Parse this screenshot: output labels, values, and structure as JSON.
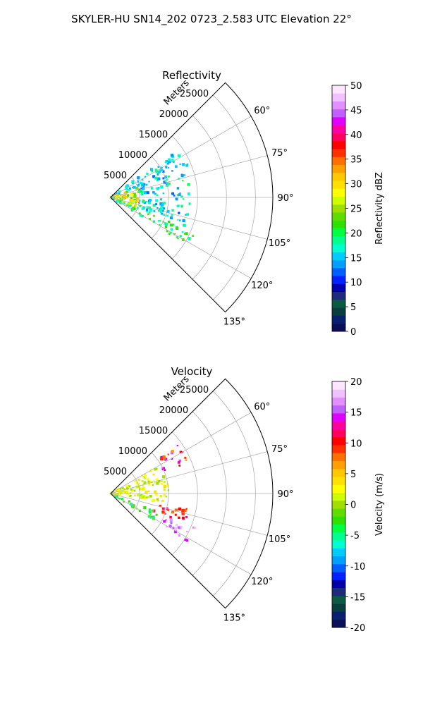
{
  "title": "SKYLER-HU  SN14_202  0723_2.583 UTC Elevation 22°",
  "chart_data": [
    {
      "type": "polar-sector",
      "title": "Reflectivity",
      "r_label": "Meters",
      "r_max": 28000,
      "r_ticks": [
        5000,
        10000,
        15000,
        20000,
        25000
      ],
      "theta_range_deg": [
        45,
        135
      ],
      "theta_ticks": [
        {
          "deg": 60,
          "label": "60°"
        },
        {
          "deg": 75,
          "label": "75°"
        },
        {
          "deg": 90,
          "label": "90°"
        },
        {
          "deg": 105,
          "label": "105°"
        },
        {
          "deg": 120,
          "label": "120°"
        },
        {
          "deg": 135,
          "label": "135°"
        }
      ],
      "grid": true,
      "colorbar": {
        "label": "Reflectivity dBZ",
        "min": 0,
        "max": 50,
        "ticks": [
          0,
          5,
          10,
          15,
          20,
          25,
          30,
          35,
          40,
          45,
          50
        ]
      },
      "data_regions": [
        {
          "theta": [
            54,
            70
          ],
          "r": [
            0,
            14500
          ],
          "value_range": [
            12,
            18
          ]
        },
        {
          "theta": [
            70,
            112
          ],
          "r": [
            0,
            5000
          ],
          "value_range": [
            22,
            32
          ]
        },
        {
          "theta": [
            70,
            112
          ],
          "r": [
            5000,
            14000
          ],
          "value_range": [
            12,
            20
          ]
        },
        {
          "theta": [
            112,
            122
          ],
          "r": [
            0,
            16000
          ],
          "value_range": [
            16,
            24
          ]
        }
      ]
    },
    {
      "type": "polar-sector",
      "title": "Velocity",
      "r_label": "Meters",
      "r_max": 28000,
      "r_ticks": [
        5000,
        10000,
        15000,
        20000,
        25000
      ],
      "theta_range_deg": [
        45,
        135
      ],
      "theta_ticks": [
        {
          "deg": 60,
          "label": "60°"
        },
        {
          "deg": 75,
          "label": "75°"
        },
        {
          "deg": 90,
          "label": "90°"
        },
        {
          "deg": 105,
          "label": "105°"
        },
        {
          "deg": 120,
          "label": "120°"
        },
        {
          "deg": 135,
          "label": "135°"
        }
      ],
      "grid": true,
      "colorbar": {
        "label": "Velocity (m/s)",
        "min": -20,
        "max": 20,
        "ticks": [
          -20,
          -15,
          -10,
          -5,
          0,
          5,
          10,
          15,
          20
        ]
      },
      "data_regions": [
        {
          "theta": [
            54,
            68
          ],
          "r": [
            10000,
            14500
          ],
          "value_range": [
            6,
            16
          ]
        },
        {
          "theta": [
            60,
            100
          ],
          "r": [
            0,
            10000
          ],
          "value_range": [
            0,
            4
          ]
        },
        {
          "theta": [
            100,
            112
          ],
          "r": [
            8000,
            14000
          ],
          "value_range": [
            8,
            13
          ]
        },
        {
          "theta": [
            112,
            122
          ],
          "r": [
            0,
            9000
          ],
          "value_range": [
            -6,
            -1
          ]
        },
        {
          "theta": [
            112,
            122
          ],
          "r": [
            10000,
            16000
          ],
          "value_range": [
            14,
            18
          ]
        }
      ]
    }
  ],
  "colors": {
    "reflectivity_scale": [
      "#0a0f5a",
      "#08206e",
      "#0a3d3d",
      "#0b5a43",
      "#1c2c7a",
      "#0000aa",
      "#0022ff",
      "#0060ff",
      "#00a0ff",
      "#00ccff",
      "#00ffd0",
      "#00ff90",
      "#00ff40",
      "#30e000",
      "#60dd00",
      "#a0e000",
      "#ccff00",
      "#ffff00",
      "#ffe000",
      "#ffc800",
      "#ffa000",
      "#ff7000",
      "#ff3000",
      "#ff0000",
      "#ff0060",
      "#ff00a0",
      "#e000ff",
      "#c060ff",
      "#e090ff",
      "#f0c0ff",
      "#fde6ff"
    ],
    "velocity_scale": [
      "#0a0f5a",
      "#08206e",
      "#0a3d3d",
      "#0b5a43",
      "#1c2c7a",
      "#0000aa",
      "#0022ff",
      "#0060ff",
      "#00a0ff",
      "#00ccff",
      "#00ffd0",
      "#00ff90",
      "#00ff40",
      "#30e000",
      "#60dd00",
      "#a0e000",
      "#ccff00",
      "#ffff00",
      "#ffe000",
      "#ffc800",
      "#ffa000",
      "#ff7000",
      "#ff3000",
      "#ff0000",
      "#ff0060",
      "#ff00a0",
      "#e000ff",
      "#c060ff",
      "#e090ff",
      "#f0c0ff",
      "#fde6ff"
    ]
  }
}
